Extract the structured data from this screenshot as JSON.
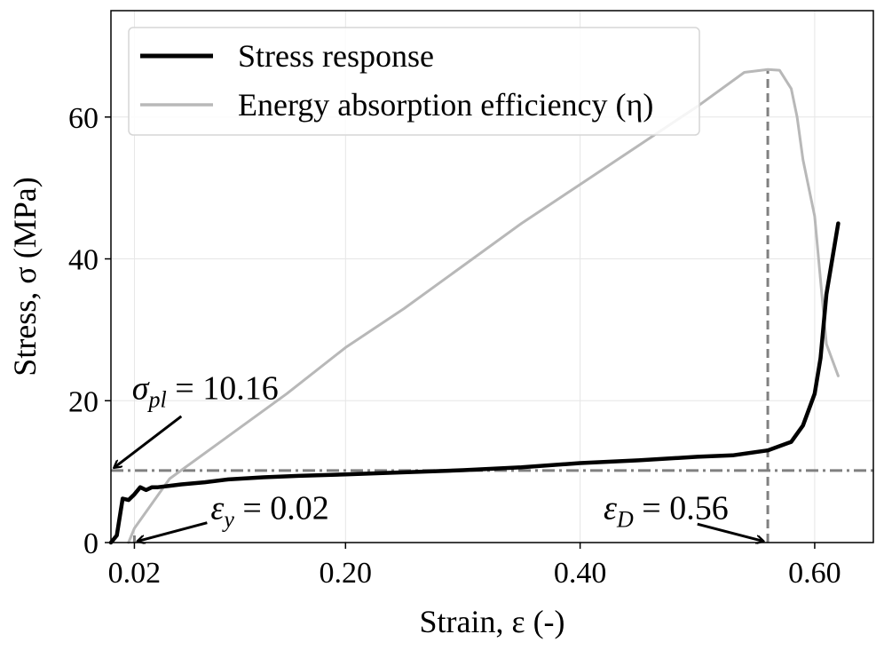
{
  "chart_data": {
    "type": "line",
    "xlabel": "Strain, ε (-)",
    "ylabel": "Stress, σ (MPa)",
    "xlim": [
      0.0,
      0.65
    ],
    "ylim": [
      0,
      75
    ],
    "x_ticks": [
      {
        "value": 0.02,
        "label": "0.02"
      },
      {
        "value": 0.2,
        "label": "0.20"
      },
      {
        "value": 0.4,
        "label": "0.40"
      },
      {
        "value": 0.6,
        "label": "0.60"
      }
    ],
    "y_ticks": [
      {
        "value": 0,
        "label": "0"
      },
      {
        "value": 20,
        "label": "20"
      },
      {
        "value": 40,
        "label": "40"
      },
      {
        "value": 60,
        "label": "60"
      }
    ],
    "grid": true,
    "legend_position": "top-left",
    "series": [
      {
        "name": "Stress response",
        "color": "#000000",
        "x": [
          0.0,
          0.005,
          0.01,
          0.015,
          0.02,
          0.025,
          0.03,
          0.035,
          0.04,
          0.05,
          0.06,
          0.08,
          0.1,
          0.13,
          0.16,
          0.2,
          0.25,
          0.3,
          0.35,
          0.4,
          0.45,
          0.5,
          0.53,
          0.56,
          0.58,
          0.59,
          0.6,
          0.605,
          0.61,
          0.62
        ],
        "y": [
          0.0,
          1.0,
          6.2,
          6.0,
          6.8,
          7.8,
          7.4,
          7.8,
          7.8,
          8.0,
          8.2,
          8.5,
          8.9,
          9.2,
          9.4,
          9.6,
          9.9,
          10.2,
          10.6,
          11.2,
          11.6,
          12.1,
          12.3,
          13.0,
          14.2,
          16.5,
          21.0,
          26.0,
          35.0,
          45.0
        ]
      },
      {
        "name": "Energy absorption efficiency (η)",
        "color": "#b8b8b8",
        "x": [
          0.015,
          0.02,
          0.05,
          0.1,
          0.15,
          0.2,
          0.25,
          0.3,
          0.35,
          0.4,
          0.45,
          0.5,
          0.54,
          0.56,
          0.57,
          0.58,
          0.585,
          0.59,
          0.6,
          0.61,
          0.62
        ],
        "y": [
          0.0,
          2.0,
          9.0,
          15.0,
          21.0,
          27.5,
          33.0,
          39.0,
          45.0,
          50.5,
          56.0,
          61.5,
          66.3,
          66.7,
          66.6,
          64.0,
          60.0,
          54.0,
          46.0,
          28.0,
          23.5
        ]
      }
    ],
    "reference_lines": [
      {
        "orientation": "horizontal",
        "value": 10.16,
        "style": "dash-dot",
        "color": "#808080"
      },
      {
        "orientation": "vertical",
        "value": 0.02,
        "ymax": 1.0,
        "style": "dashed",
        "color": "#808080"
      },
      {
        "orientation": "vertical",
        "value": 0.56,
        "ymax": 66.7,
        "style": "dashed",
        "color": "#808080"
      }
    ],
    "annotations": [
      {
        "name": "sigma-pl",
        "symbol": "σ",
        "subscript": "pl",
        "rest": " = 10.16",
        "text_x": 0.018,
        "text_y": 20.2,
        "arrow_from": [
          0.06,
          17.8
        ],
        "arrow_to": [
          0.003,
          10.6
        ]
      },
      {
        "name": "epsilon-y",
        "symbol": "ε",
        "subscript": "y",
        "rest": " = 0.02",
        "text_x": 0.085,
        "text_y": 3.3,
        "arrow_from": [
          0.082,
          2.8
        ],
        "arrow_to": [
          0.023,
          0.2
        ]
      },
      {
        "name": "epsilon-d",
        "symbol": "ε",
        "subscript": "D",
        "rest": " = 0.56",
        "text_x": 0.42,
        "text_y": 3.3,
        "arrow_from": [
          0.5,
          2.6
        ],
        "arrow_to": [
          0.556,
          0.2
        ]
      }
    ]
  }
}
